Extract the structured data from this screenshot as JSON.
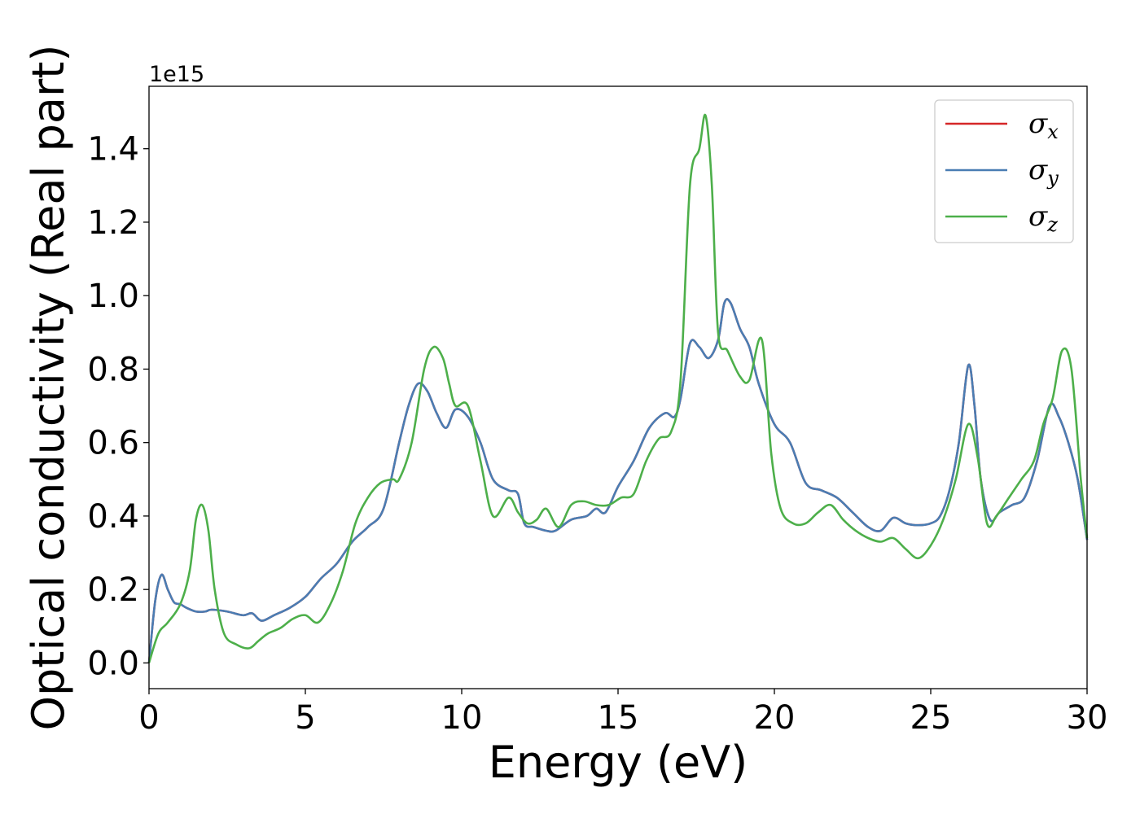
{
  "chart_data": {
    "type": "line",
    "xlabel": "Energy (eV)",
    "ylabel": "Optical conductivity (Real part)",
    "y_multiplier_label": "1e15",
    "xlim": [
      0,
      30
    ],
    "ylim": [
      -0.07,
      1.57
    ],
    "xticks": [
      0,
      5,
      10,
      15,
      20,
      25,
      30
    ],
    "xtick_labels": [
      "0",
      "5",
      "10",
      "15",
      "20",
      "25",
      "30"
    ],
    "yticks": [
      0.0,
      0.2,
      0.4,
      0.6,
      0.8,
      1.0,
      1.2,
      1.4
    ],
    "ytick_labels": [
      "0.0",
      "0.2",
      "0.4",
      "0.6",
      "0.8",
      "1.0",
      "1.2",
      "1.4"
    ],
    "grid": false,
    "legend_position": "top-right",
    "series": [
      {
        "name": "σx",
        "legend_symbol": "σ",
        "legend_subscript": "x",
        "color": "#d62728",
        "x": [
          0,
          0.2,
          0.4,
          0.6,
          0.8,
          1.0,
          1.2,
          1.5,
          1.8,
          2.0,
          2.5,
          3.0,
          3.3,
          3.6,
          4.0,
          4.5,
          5.0,
          5.5,
          6.0,
          6.5,
          7.0,
          7.5,
          8.0,
          8.3,
          8.6,
          8.9,
          9.2,
          9.5,
          9.8,
          10.2,
          10.6,
          11.0,
          11.5,
          11.8,
          12.0,
          12.3,
          12.7,
          13.0,
          13.5,
          14.0,
          14.3,
          14.6,
          15.0,
          15.5,
          16.0,
          16.5,
          16.8,
          17.0,
          17.3,
          17.6,
          17.9,
          18.2,
          18.4,
          18.6,
          18.9,
          19.2,
          19.5,
          20.0,
          20.5,
          21.0,
          21.5,
          22.0,
          22.5,
          23.0,
          23.4,
          23.8,
          24.2,
          24.6,
          25.0,
          25.3,
          25.6,
          25.9,
          26.2,
          26.4,
          26.6,
          26.9,
          27.2,
          27.6,
          28.0,
          28.4,
          28.8,
          29.1,
          29.4,
          29.7,
          30.0
        ],
        "values": [
          0.0,
          0.17,
          0.24,
          0.2,
          0.165,
          0.16,
          0.15,
          0.14,
          0.14,
          0.145,
          0.14,
          0.13,
          0.135,
          0.115,
          0.13,
          0.15,
          0.18,
          0.23,
          0.27,
          0.33,
          0.37,
          0.42,
          0.6,
          0.7,
          0.76,
          0.74,
          0.68,
          0.64,
          0.69,
          0.67,
          0.6,
          0.5,
          0.47,
          0.46,
          0.38,
          0.37,
          0.36,
          0.36,
          0.39,
          0.4,
          0.42,
          0.41,
          0.48,
          0.55,
          0.64,
          0.68,
          0.67,
          0.72,
          0.87,
          0.86,
          0.83,
          0.88,
          0.98,
          0.98,
          0.91,
          0.86,
          0.76,
          0.65,
          0.6,
          0.49,
          0.47,
          0.45,
          0.41,
          0.37,
          0.36,
          0.395,
          0.38,
          0.375,
          0.38,
          0.4,
          0.47,
          0.6,
          0.81,
          0.7,
          0.5,
          0.39,
          0.41,
          0.43,
          0.45,
          0.55,
          0.7,
          0.67,
          0.6,
          0.5,
          0.335
        ]
      },
      {
        "name": "σy",
        "legend_symbol": "σ",
        "legend_subscript": "y",
        "color": "#4a7db3",
        "x": [
          0,
          0.2,
          0.4,
          0.6,
          0.8,
          1.0,
          1.2,
          1.5,
          1.8,
          2.0,
          2.5,
          3.0,
          3.3,
          3.6,
          4.0,
          4.5,
          5.0,
          5.5,
          6.0,
          6.5,
          7.0,
          7.5,
          8.0,
          8.3,
          8.6,
          8.9,
          9.2,
          9.5,
          9.8,
          10.2,
          10.6,
          11.0,
          11.5,
          11.8,
          12.0,
          12.3,
          12.7,
          13.0,
          13.5,
          14.0,
          14.3,
          14.6,
          15.0,
          15.5,
          16.0,
          16.5,
          16.8,
          17.0,
          17.3,
          17.6,
          17.9,
          18.2,
          18.4,
          18.6,
          18.9,
          19.2,
          19.5,
          20.0,
          20.5,
          21.0,
          21.5,
          22.0,
          22.5,
          23.0,
          23.4,
          23.8,
          24.2,
          24.6,
          25.0,
          25.3,
          25.6,
          25.9,
          26.2,
          26.4,
          26.6,
          26.9,
          27.2,
          27.6,
          28.0,
          28.4,
          28.8,
          29.1,
          29.4,
          29.7,
          30.0
        ],
        "values": [
          0.0,
          0.17,
          0.24,
          0.2,
          0.165,
          0.16,
          0.15,
          0.14,
          0.14,
          0.145,
          0.14,
          0.13,
          0.135,
          0.115,
          0.13,
          0.15,
          0.18,
          0.23,
          0.27,
          0.33,
          0.37,
          0.42,
          0.6,
          0.7,
          0.76,
          0.74,
          0.68,
          0.64,
          0.69,
          0.67,
          0.6,
          0.5,
          0.47,
          0.46,
          0.38,
          0.37,
          0.36,
          0.36,
          0.39,
          0.4,
          0.42,
          0.41,
          0.48,
          0.55,
          0.64,
          0.68,
          0.67,
          0.72,
          0.87,
          0.86,
          0.83,
          0.88,
          0.98,
          0.98,
          0.91,
          0.86,
          0.76,
          0.65,
          0.6,
          0.49,
          0.47,
          0.45,
          0.41,
          0.37,
          0.36,
          0.395,
          0.38,
          0.375,
          0.38,
          0.4,
          0.47,
          0.6,
          0.81,
          0.7,
          0.5,
          0.39,
          0.41,
          0.43,
          0.45,
          0.55,
          0.7,
          0.67,
          0.6,
          0.5,
          0.335
        ]
      },
      {
        "name": "σz",
        "legend_symbol": "σ",
        "legend_subscript": "z",
        "color": "#4daf4a",
        "x": [
          0,
          0.3,
          0.6,
          1.0,
          1.3,
          1.5,
          1.7,
          1.9,
          2.1,
          2.4,
          2.8,
          3.2,
          3.5,
          3.8,
          4.2,
          4.6,
          5.0,
          5.4,
          5.8,
          6.2,
          6.6,
          7.0,
          7.4,
          7.8,
          8.0,
          8.4,
          8.8,
          9.1,
          9.4,
          9.6,
          9.8,
          10.2,
          10.6,
          11.0,
          11.5,
          11.8,
          12.1,
          12.4,
          12.7,
          13.1,
          13.5,
          13.9,
          14.3,
          14.7,
          15.1,
          15.5,
          15.9,
          16.3,
          16.7,
          17.0,
          17.3,
          17.6,
          17.8,
          18.0,
          18.2,
          18.5,
          18.9,
          19.2,
          19.6,
          19.9,
          20.2,
          20.6,
          21.0,
          21.4,
          21.8,
          22.2,
          22.6,
          23.0,
          23.4,
          23.8,
          24.2,
          24.6,
          25.0,
          25.4,
          25.8,
          26.2,
          26.5,
          26.8,
          27.1,
          27.5,
          27.9,
          28.3,
          28.6,
          28.9,
          29.2,
          29.5,
          29.8,
          30.0
        ],
        "values": [
          0.0,
          0.08,
          0.11,
          0.16,
          0.25,
          0.39,
          0.43,
          0.36,
          0.2,
          0.08,
          0.05,
          0.04,
          0.06,
          0.08,
          0.095,
          0.12,
          0.13,
          0.11,
          0.16,
          0.25,
          0.38,
          0.45,
          0.49,
          0.5,
          0.5,
          0.6,
          0.8,
          0.86,
          0.83,
          0.76,
          0.7,
          0.7,
          0.55,
          0.4,
          0.45,
          0.41,
          0.38,
          0.39,
          0.42,
          0.37,
          0.43,
          0.44,
          0.43,
          0.43,
          0.45,
          0.46,
          0.55,
          0.61,
          0.63,
          0.77,
          1.3,
          1.4,
          1.49,
          1.3,
          0.9,
          0.85,
          0.78,
          0.77,
          0.88,
          0.57,
          0.42,
          0.38,
          0.38,
          0.41,
          0.43,
          0.39,
          0.36,
          0.34,
          0.33,
          0.34,
          0.31,
          0.285,
          0.32,
          0.39,
          0.5,
          0.65,
          0.56,
          0.38,
          0.4,
          0.45,
          0.5,
          0.55,
          0.65,
          0.72,
          0.85,
          0.8,
          0.5,
          0.34
        ]
      }
    ]
  }
}
